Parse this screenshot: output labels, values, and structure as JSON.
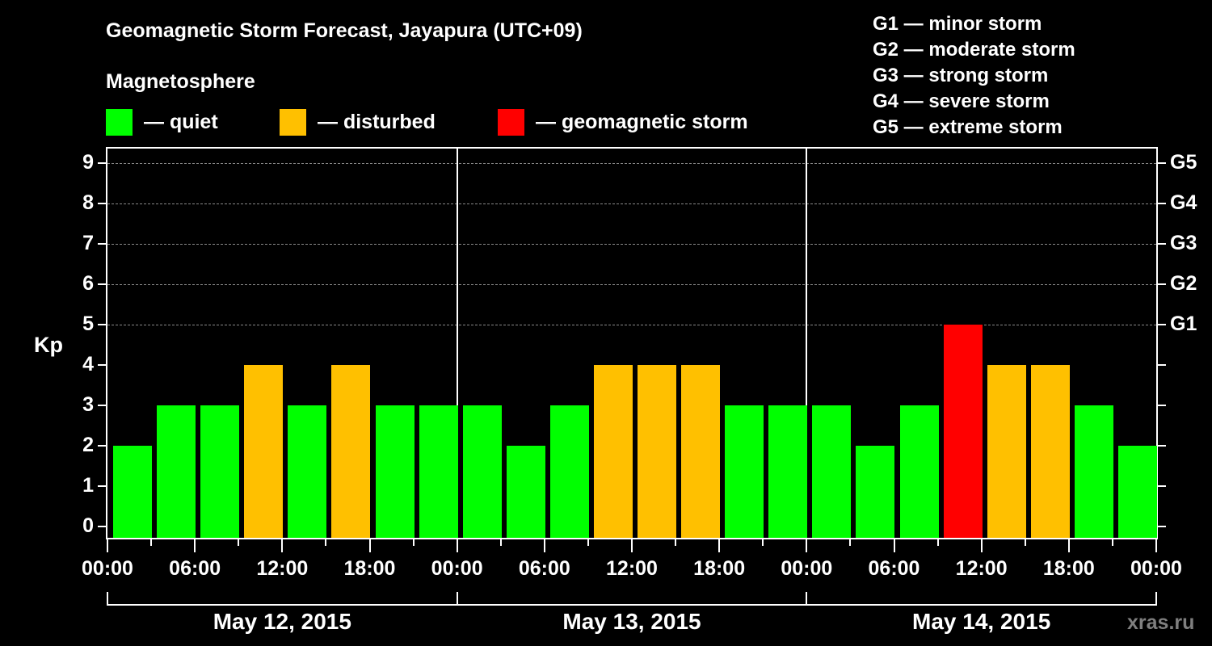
{
  "header": {
    "title": "Geomagnetic Storm Forecast, Jayapura (UTC+09)",
    "subtitle": "Magnetosphere"
  },
  "legend": [
    {
      "label": "— quiet",
      "color": "#00ff00"
    },
    {
      "label": "— disturbed",
      "color": "#ffc000"
    },
    {
      "label": "— geomagnetic storm",
      "color": "#ff0000"
    }
  ],
  "g_scale_legend": [
    "G1 — minor storm",
    "G2 — moderate storm",
    "G3 — strong storm",
    "G4 — severe storm",
    "G5 — extreme storm"
  ],
  "axis": {
    "y_label": "Kp",
    "y_ticks": [
      "0",
      "1",
      "2",
      "3",
      "4",
      "5",
      "6",
      "7",
      "8",
      "9"
    ],
    "g_ticks": [
      {
        "kp": 5,
        "label": "G1"
      },
      {
        "kp": 6,
        "label": "G2"
      },
      {
        "kp": 7,
        "label": "G3"
      },
      {
        "kp": 8,
        "label": "G4"
      },
      {
        "kp": 9,
        "label": "G5"
      }
    ],
    "x_ticks": [
      "00:00",
      "06:00",
      "12:00",
      "18:00",
      "00:00",
      "06:00",
      "12:00",
      "18:00",
      "00:00",
      "06:00",
      "12:00",
      "18:00",
      "00:00"
    ],
    "dates": [
      "May 12, 2015",
      "May 13, 2015",
      "May 14, 2015"
    ]
  },
  "watermark": "xras.ru",
  "chart_data": {
    "type": "bar",
    "title": "Geomagnetic Storm Forecast, Jayapura (UTC+09)",
    "xlabel": "",
    "ylabel": "Kp",
    "ylim": [
      0,
      9
    ],
    "grid": "dashed horizontal at Kp 5-9",
    "categories": [
      "May 12 00:00",
      "May 12 03:00",
      "May 12 06:00",
      "May 12 09:00",
      "May 12 12:00",
      "May 12 15:00",
      "May 12 18:00",
      "May 12 21:00",
      "May 13 00:00",
      "May 13 03:00",
      "May 13 06:00",
      "May 13 09:00",
      "May 13 12:00",
      "May 13 15:00",
      "May 13 18:00",
      "May 13 21:00",
      "May 14 00:00",
      "May 14 03:00",
      "May 14 06:00",
      "May 14 09:00",
      "May 14 12:00",
      "May 14 15:00",
      "May 14 18:00",
      "May 14 21:00"
    ],
    "values": [
      2,
      3,
      3,
      4,
      3,
      4,
      3,
      3,
      3,
      2,
      3,
      4,
      4,
      4,
      3,
      3,
      3,
      2,
      3,
      5,
      4,
      4,
      3,
      2
    ],
    "status": [
      "quiet",
      "quiet",
      "quiet",
      "disturbed",
      "quiet",
      "disturbed",
      "quiet",
      "quiet",
      "quiet",
      "quiet",
      "quiet",
      "disturbed",
      "disturbed",
      "disturbed",
      "quiet",
      "quiet",
      "quiet",
      "quiet",
      "quiet",
      "storm",
      "disturbed",
      "disturbed",
      "quiet",
      "quiet"
    ],
    "status_colors": {
      "quiet": "#00ff00",
      "disturbed": "#ffc000",
      "storm": "#ff0000"
    },
    "secondary_axis": {
      "5": "G1",
      "6": "G2",
      "7": "G3",
      "8": "G4",
      "9": "G5"
    }
  }
}
